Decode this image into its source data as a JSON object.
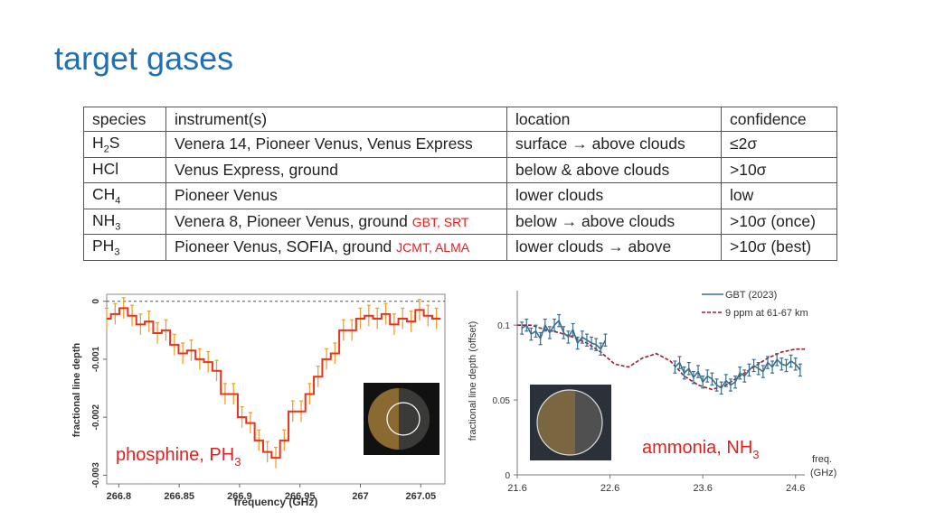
{
  "slide": {
    "title": "target gases"
  },
  "table": {
    "headers": [
      "species",
      "instrument(s)",
      "location",
      "confidence"
    ],
    "rows": [
      {
        "species": "H",
        "species_sub": "2",
        "species_tail": "S",
        "instrument": "Venera 14, Pioneer Venus, Venus Express",
        "instrument_note": "",
        "location": "surface → above clouds",
        "confidence": "≤2σ"
      },
      {
        "species": "HCl",
        "species_sub": "",
        "species_tail": "",
        "instrument": "Venus Express, ground",
        "instrument_note": "",
        "location": "below & above clouds",
        "confidence": ">10σ"
      },
      {
        "species": "CH",
        "species_sub": "4",
        "species_tail": "",
        "instrument": "Pioneer Venus",
        "instrument_note": "",
        "location": "lower clouds",
        "confidence": "low"
      },
      {
        "species": "NH",
        "species_sub": "3",
        "species_tail": "",
        "instrument": "Venera 8, Pioneer Venus, ground",
        "instrument_note": "GBT, SRT",
        "location": "below → above clouds",
        "confidence": ">10σ (once)"
      },
      {
        "species": "PH",
        "species_sub": "3",
        "species_tail": "",
        "instrument": "Pioneer Venus, SOFIA, ground",
        "instrument_note": "JCMT, ALMA",
        "location": "lower clouds → above",
        "confidence": ">10σ (best)"
      }
    ]
  },
  "colors": {
    "title": "#1f6fb2",
    "step": "#e8341c",
    "errbar": "#f0a030",
    "gbt": "#3a6f8f",
    "model": "#9b1c31",
    "label_red": "#e02020"
  },
  "chart_data": [
    {
      "type": "line",
      "label": "phosphine, PH",
      "label_sub": "3",
      "xlabel": "frequency (GHz)",
      "ylabel": "fractional line depth",
      "xlim": [
        266.79,
        267.07
      ],
      "ylim": [
        -0.00315,
        0.00012
      ],
      "xticks": [
        "266.8",
        "266.85",
        "266.9",
        "266.95",
        "267",
        "267.05"
      ],
      "xtick_values": [
        266.8,
        266.85,
        266.9,
        266.95,
        267.0,
        267.05
      ],
      "yticks": [
        "0",
        "-0.001",
        "-0.002",
        "-0.003"
      ],
      "ytick_values": [
        0,
        -0.001,
        -0.002,
        -0.003
      ],
      "reference_line": 0,
      "x": [
        266.79,
        266.797,
        266.804,
        266.811,
        266.818,
        266.825,
        266.832,
        266.839,
        266.846,
        266.853,
        266.86,
        266.867,
        266.874,
        266.881,
        266.888,
        266.895,
        266.902,
        266.909,
        266.916,
        266.923,
        266.93,
        266.937,
        266.944,
        266.951,
        266.958,
        266.965,
        266.972,
        266.979,
        266.986,
        266.993,
        267.0,
        267.007,
        267.014,
        267.021,
        267.028,
        267.035,
        267.042,
        267.049,
        267.056,
        267.063
      ],
      "y": [
        -0.0003,
        -0.00022,
        -0.00012,
        -0.00025,
        -0.0004,
        -0.00035,
        -0.00055,
        -0.0005,
        -0.00075,
        -0.0009,
        -0.00085,
        -0.001,
        -0.00105,
        -0.0012,
        -0.0016,
        -0.0016,
        -0.002,
        -0.0021,
        -0.0024,
        -0.0026,
        -0.0027,
        -0.0024,
        -0.0019,
        -0.0019,
        -0.0016,
        -0.0013,
        -0.001,
        -0.0009,
        -0.0005,
        -0.0005,
        -0.0003,
        -0.00025,
        -0.0003,
        -0.00022,
        -0.0004,
        -0.0003,
        -0.00035,
        -0.00015,
        -0.00025,
        -0.0003
      ],
      "err": 0.00018
    },
    {
      "type": "line",
      "label": "ammonia, NH",
      "label_sub": "3",
      "xlabel": "freq.",
      "xlabel2": "(GHz)",
      "ylabel": "fractional line depth (offset)",
      "xlim": [
        21.6,
        24.7
      ],
      "ylim": [
        0,
        0.123
      ],
      "xticks": [
        "21.6",
        "22.6",
        "23.6",
        "24.6"
      ],
      "xtick_values": [
        21.6,
        22.6,
        23.6,
        24.6
      ],
      "yticks": [
        "0",
        "0.05",
        "0.1"
      ],
      "ytick_values": [
        0,
        0.05,
        0.1
      ],
      "series": [
        {
          "name": "GBT (2023)",
          "segments": [
            {
              "x": [
                21.65,
                21.7,
                21.75,
                21.8,
                21.85,
                21.9,
                21.95,
                22.0,
                22.05,
                22.1,
                22.15,
                22.2,
                22.25,
                22.3,
                22.35,
                22.4,
                22.45,
                22.5,
                22.55
              ],
              "y": [
                0.098,
                0.1,
                0.094,
                0.096,
                0.091,
                0.1,
                0.095,
                0.1,
                0.103,
                0.095,
                0.092,
                0.097,
                0.088,
                0.092,
                0.09,
                0.088,
                0.087,
                0.084,
                0.09
              ]
            },
            {
              "x": [
                23.3,
                23.35,
                23.4,
                23.45,
                23.5,
                23.55,
                23.6,
                23.65,
                23.7,
                23.75,
                23.8,
                23.85,
                23.9,
                23.95,
                24.0,
                24.05,
                24.1,
                24.15,
                24.2,
                24.25,
                24.3,
                24.35,
                24.4,
                24.45,
                24.5,
                24.55,
                24.6,
                24.65
              ],
              "y": [
                0.072,
                0.075,
                0.068,
                0.071,
                0.065,
                0.069,
                0.062,
                0.066,
                0.064,
                0.06,
                0.058,
                0.063,
                0.06,
                0.062,
                0.068,
                0.066,
                0.07,
                0.073,
                0.071,
                0.069,
                0.075,
                0.072,
                0.077,
                0.074,
                0.073,
                0.076,
                0.074,
                0.07
              ]
            }
          ]
        },
        {
          "name": "9 ppm at 61-67 km",
          "x": [
            21.6,
            21.75,
            21.9,
            22.05,
            22.2,
            22.35,
            22.5,
            22.65,
            22.8,
            22.95,
            23.1,
            23.25,
            23.4,
            23.55,
            23.7,
            23.85,
            24.0,
            24.15,
            24.3,
            24.45,
            24.6,
            24.7
          ],
          "y": [
            0.1,
            0.1,
            0.097,
            0.095,
            0.092,
            0.088,
            0.082,
            0.074,
            0.072,
            0.078,
            0.081,
            0.076,
            0.066,
            0.06,
            0.057,
            0.06,
            0.066,
            0.072,
            0.078,
            0.082,
            0.084,
            0.084
          ]
        }
      ],
      "err": 0.004
    }
  ]
}
